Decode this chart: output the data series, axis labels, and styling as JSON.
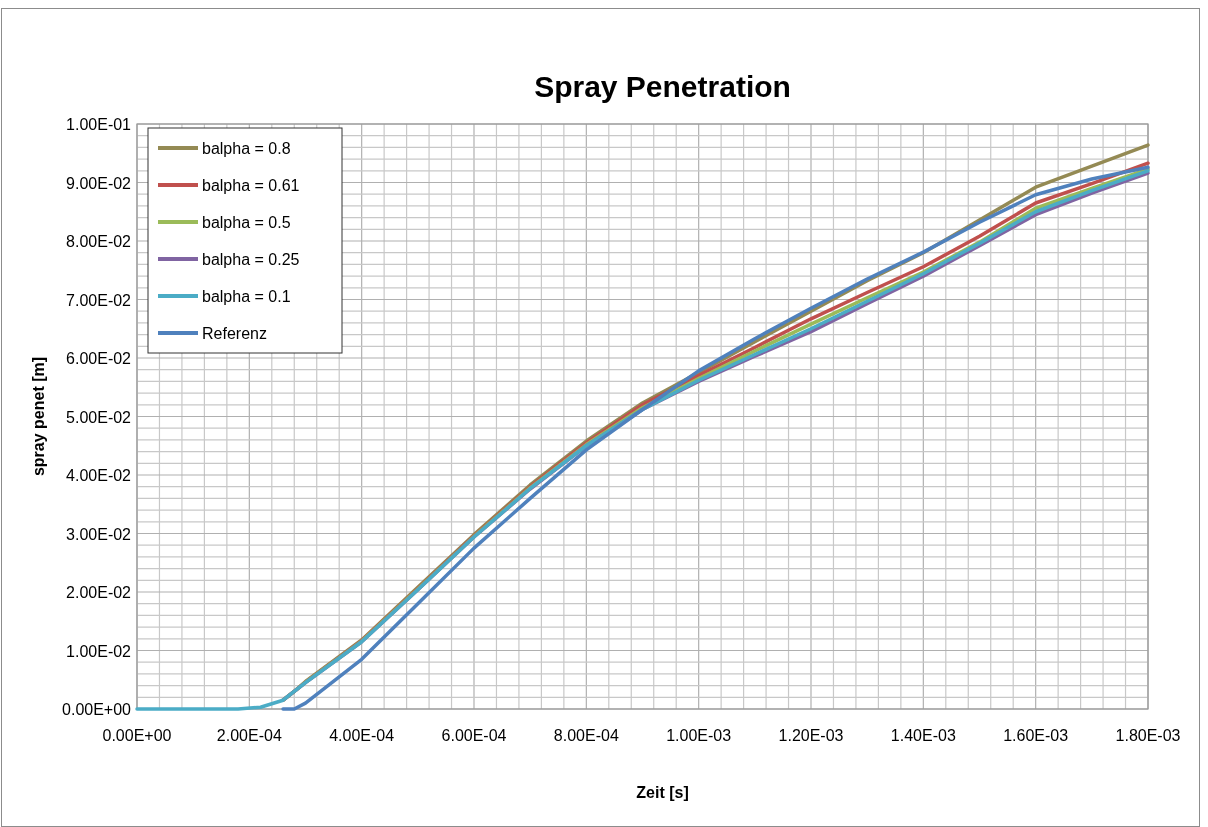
{
  "chart_data": {
    "type": "line",
    "title": "Spray Penetration",
    "xlabel": "Zeit [s]",
    "ylabel": "spray penet [m]",
    "x": [
      0,
      0.0001,
      0.00018,
      0.00022,
      0.00026,
      0.00028,
      0.0003,
      0.0004,
      0.0005,
      0.0006,
      0.0007,
      0.0008,
      0.0009,
      0.001,
      0.0011,
      0.0012,
      0.0013,
      0.0014,
      0.0015,
      0.0016,
      0.0017,
      0.0018
    ],
    "series": [
      {
        "name": "balpha = 0.8",
        "color": "#948a54",
        "values": [
          null,
          null,
          null,
          null,
          0.0015,
          0.003,
          0.0047,
          0.0118,
          0.0208,
          0.0298,
          0.0383,
          0.0458,
          0.0523,
          0.0575,
          0.0628,
          0.068,
          0.0732,
          0.078,
          0.0836,
          0.0892,
          0.0928,
          0.0964
        ]
      },
      {
        "name": "balpha = 0.61",
        "color": "#c0504d",
        "values": [
          null,
          null,
          null,
          null,
          0.0015,
          0.003,
          0.0046,
          0.0117,
          0.0206,
          0.0296,
          0.038,
          0.0455,
          0.052,
          0.057,
          0.0618,
          0.0667,
          0.0712,
          0.0756,
          0.0808,
          0.0865,
          0.0898,
          0.0933
        ]
      },
      {
        "name": "balpha = 0.5",
        "color": "#9bbb59",
        "values": [
          null,
          null,
          null,
          null,
          0.0015,
          0.003,
          0.0046,
          0.0116,
          0.0205,
          0.0295,
          0.0378,
          0.0452,
          0.0515,
          0.0565,
          0.0612,
          0.0658,
          0.0703,
          0.0747,
          0.0798,
          0.0856,
          0.089,
          0.0923
        ]
      },
      {
        "name": "balpha = 0.25",
        "color": "#8064a2",
        "values": [
          null,
          null,
          null,
          null,
          0.0015,
          0.003,
          0.0045,
          0.0115,
          0.0204,
          0.0294,
          0.0376,
          0.045,
          0.0512,
          0.056,
          0.0603,
          0.0645,
          0.0693,
          0.074,
          0.0792,
          0.0845,
          0.0882,
          0.0916
        ]
      },
      {
        "name": "balpha = 0.1",
        "color": "#4bacc6",
        "values": [
          0,
          0,
          0,
          0.0003,
          0.0015,
          0.003,
          0.0045,
          0.0115,
          0.0204,
          0.0294,
          0.0377,
          0.045,
          0.0512,
          0.0562,
          0.0606,
          0.065,
          0.0697,
          0.0744,
          0.0796,
          0.085,
          0.0886,
          0.092
        ]
      },
      {
        "name": "Referenz",
        "color": "#4f81bd",
        "values": [
          null,
          null,
          null,
          null,
          0,
          0,
          0.001,
          0.0085,
          0.018,
          0.0275,
          0.036,
          0.0443,
          0.0512,
          0.0578,
          0.0633,
          0.0685,
          0.0735,
          0.0781,
          0.0832,
          0.0879,
          0.0906,
          0.0926
        ]
      }
    ],
    "xlim": [
      0,
      0.0018
    ],
    "xticks": [
      {
        "value": 0,
        "label": "0.00E+00"
      },
      {
        "value": 4e-05,
        "label": null
      },
      {
        "value": 8e-05,
        "label": null
      },
      {
        "value": 0.00012,
        "label": null
      },
      {
        "value": 0.00016,
        "label": null
      },
      {
        "value": 0.0002,
        "label": "2.00E-04"
      },
      {
        "value": 0.00024,
        "label": null
      },
      {
        "value": 0.00028,
        "label": null
      },
      {
        "value": 0.00032,
        "label": null
      },
      {
        "value": 0.00036,
        "label": null
      },
      {
        "value": 0.0004,
        "label": "4.00E-04"
      },
      {
        "value": 0.00044,
        "label": null
      },
      {
        "value": 0.00048,
        "label": null
      },
      {
        "value": 0.00052,
        "label": null
      },
      {
        "value": 0.00056,
        "label": null
      },
      {
        "value": 0.0006,
        "label": "6.00E-04"
      },
      {
        "value": 0.00064,
        "label": null
      },
      {
        "value": 0.00068,
        "label": null
      },
      {
        "value": 0.00072,
        "label": null
      },
      {
        "value": 0.00076,
        "label": null
      },
      {
        "value": 0.0008,
        "label": "8.00E-04"
      },
      {
        "value": 0.00084,
        "label": null
      },
      {
        "value": 0.00088,
        "label": null
      },
      {
        "value": 0.00092,
        "label": null
      },
      {
        "value": 0.00096,
        "label": null
      },
      {
        "value": 0.001,
        "label": "1.00E-03"
      },
      {
        "value": 0.00104,
        "label": null
      },
      {
        "value": 0.00108,
        "label": null
      },
      {
        "value": 0.00112,
        "label": null
      },
      {
        "value": 0.00116,
        "label": null
      },
      {
        "value": 0.0012,
        "label": "1.20E-03"
      },
      {
        "value": 0.00124,
        "label": null
      },
      {
        "value": 0.00128,
        "label": null
      },
      {
        "value": 0.00132,
        "label": null
      },
      {
        "value": 0.00136,
        "label": null
      },
      {
        "value": 0.0014,
        "label": "1.40E-03"
      },
      {
        "value": 0.00144,
        "label": null
      },
      {
        "value": 0.00148,
        "label": null
      },
      {
        "value": 0.00152,
        "label": null
      },
      {
        "value": 0.00156,
        "label": null
      },
      {
        "value": 0.0016,
        "label": "1.60E-03"
      },
      {
        "value": 0.00164,
        "label": null
      },
      {
        "value": 0.00168,
        "label": null
      },
      {
        "value": 0.00172,
        "label": null
      },
      {
        "value": 0.00176,
        "label": null
      },
      {
        "value": 0.0018,
        "label": "1.80E-03"
      }
    ],
    "ylim": [
      0,
      0.1
    ],
    "yticks": [
      {
        "value": 0,
        "label": "0.00E+00"
      },
      {
        "value": 0.002,
        "label": null
      },
      {
        "value": 0.004,
        "label": null
      },
      {
        "value": 0.006,
        "label": null
      },
      {
        "value": 0.008,
        "label": null
      },
      {
        "value": 0.01,
        "label": "1.00E-02"
      },
      {
        "value": 0.012,
        "label": null
      },
      {
        "value": 0.014,
        "label": null
      },
      {
        "value": 0.016,
        "label": null
      },
      {
        "value": 0.018,
        "label": null
      },
      {
        "value": 0.02,
        "label": "2.00E-02"
      },
      {
        "value": 0.022,
        "label": null
      },
      {
        "value": 0.024,
        "label": null
      },
      {
        "value": 0.026,
        "label": null
      },
      {
        "value": 0.028,
        "label": null
      },
      {
        "value": 0.03,
        "label": "3.00E-02"
      },
      {
        "value": 0.032,
        "label": null
      },
      {
        "value": 0.034,
        "label": null
      },
      {
        "value": 0.036,
        "label": null
      },
      {
        "value": 0.038,
        "label": null
      },
      {
        "value": 0.04,
        "label": "4.00E-02"
      },
      {
        "value": 0.042,
        "label": null
      },
      {
        "value": 0.044,
        "label": null
      },
      {
        "value": 0.046,
        "label": null
      },
      {
        "value": 0.048,
        "label": null
      },
      {
        "value": 0.05,
        "label": "5.00E-02"
      },
      {
        "value": 0.052,
        "label": null
      },
      {
        "value": 0.054,
        "label": null
      },
      {
        "value": 0.056,
        "label": null
      },
      {
        "value": 0.058,
        "label": null
      },
      {
        "value": 0.06,
        "label": "6.00E-02"
      },
      {
        "value": 0.062,
        "label": null
      },
      {
        "value": 0.064,
        "label": null
      },
      {
        "value": 0.066,
        "label": null
      },
      {
        "value": 0.068,
        "label": null
      },
      {
        "value": 0.07,
        "label": "7.00E-02"
      },
      {
        "value": 0.072,
        "label": null
      },
      {
        "value": 0.074,
        "label": null
      },
      {
        "value": 0.076,
        "label": null
      },
      {
        "value": 0.078,
        "label": null
      },
      {
        "value": 0.08,
        "label": "8.00E-02"
      },
      {
        "value": 0.082,
        "label": null
      },
      {
        "value": 0.084,
        "label": null
      },
      {
        "value": 0.086,
        "label": null
      },
      {
        "value": 0.088,
        "label": null
      },
      {
        "value": 0.09,
        "label": "9.00E-02"
      },
      {
        "value": 0.092,
        "label": null
      },
      {
        "value": 0.094,
        "label": null
      },
      {
        "value": 0.096,
        "label": null
      },
      {
        "value": 0.098,
        "label": null
      },
      {
        "value": 0.1,
        "label": "1.00E-01"
      }
    ],
    "grid": true,
    "legend": "top left",
    "marker": "none",
    "line_style": "solid"
  }
}
